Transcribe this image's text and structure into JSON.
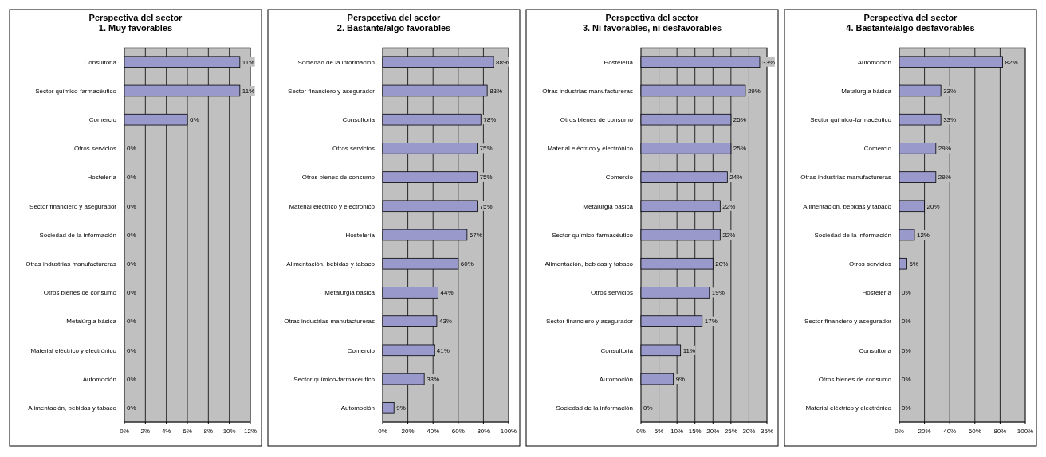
{
  "chart_data": [
    {
      "type": "bar",
      "orientation": "horizontal",
      "title": "Perspectiva del sector\n1. Muy favorables",
      "categories": [
        "Consultoria",
        "Sector químico-farmacéutico",
        "Comercio",
        "Otros servicios",
        "Hostelería",
        "Sector financiero y asegurador",
        "Sociedad de la información",
        "Otras industrias manufactureras",
        "Otros bienes de consumo",
        "Metalúrgia básica",
        "Material eléctrico y electrónico",
        "Automoción",
        "Alimentación, bebidas y tabaco"
      ],
      "series": [
        {
          "color": "#9999cc",
          "values": [
            11,
            11,
            6,
            0,
            0,
            0,
            0,
            0,
            0,
            0,
            0,
            0,
            0
          ],
          "value_labels": [
            "11%",
            "11%",
            "6%",
            "0%",
            "0%",
            "0%",
            "0%",
            "0%",
            "0%",
            "0%",
            "0%",
            "0%",
            "0%"
          ]
        }
      ],
      "xlim": [
        0,
        12
      ],
      "xticks": [
        {
          "value": 0,
          "label": "0%"
        },
        {
          "value": 2,
          "label": "2%"
        },
        {
          "value": 4,
          "label": "4%"
        },
        {
          "value": 6,
          "label": "6%"
        },
        {
          "value": 8,
          "label": "8%"
        },
        {
          "value": 10,
          "label": "10%"
        },
        {
          "value": 12,
          "label": "12%"
        }
      ],
      "grid": "x"
    },
    {
      "type": "bar",
      "orientation": "horizontal",
      "title": "Perspectiva del sector\n2. Bastante/algo favorables",
      "categories": [
        "Sociedad de la información",
        "Sector financiero y asegurador",
        "Consultoria",
        "Otros servicios",
        "Otros bienes de consumo",
        "Material eléctrico y electrónico",
        "Hostelería",
        "Alimentación, bebidas y tabaco",
        "Metalúrgia básica",
        "Otras industrias manufactureras",
        "Comercio",
        "Sector químico-farmacéutico",
        "Automoción"
      ],
      "series": [
        {
          "color": "#9999cc",
          "values": [
            88,
            83,
            78,
            75,
            75,
            75,
            67,
            60,
            44,
            43,
            41,
            33,
            9
          ],
          "value_labels": [
            "88%",
            "83%",
            "78%",
            "75%",
            "75%",
            "75%",
            "67%",
            "60%",
            "44%",
            "43%",
            "41%",
            "33%",
            "9%"
          ]
        }
      ],
      "xlim": [
        0,
        100
      ],
      "xticks": [
        {
          "value": 0,
          "label": "0%"
        },
        {
          "value": 20,
          "label": "20%"
        },
        {
          "value": 40,
          "label": "40%"
        },
        {
          "value": 60,
          "label": "60%"
        },
        {
          "value": 80,
          "label": "80%"
        },
        {
          "value": 100,
          "label": "100%"
        }
      ],
      "grid": "x"
    },
    {
      "type": "bar",
      "orientation": "horizontal",
      "title": "Perspectiva del sector\n3. Ni favorables, ni desfavorables",
      "categories": [
        "Hostelería",
        "Otras industrias manufactureras",
        "Otros bienes de consumo",
        "Material eléctrico y electrónico",
        "Comercio",
        "Metalúrgia básica",
        "Sector químico-farmacéutico",
        "Alimentación, bebidas y tabaco",
        "Otros servicios",
        "Sector financiero y asegurador",
        "Consultoria",
        "Automoción",
        "Sociedad de la información"
      ],
      "series": [
        {
          "color": "#9999cc",
          "values": [
            33,
            29,
            25,
            25,
            24,
            22,
            22,
            20,
            19,
            17,
            11,
            9,
            0
          ],
          "value_labels": [
            "33%",
            "29%",
            "25%",
            "25%",
            "24%",
            "22%",
            "22%",
            "20%",
            "19%",
            "17%",
            "11%",
            "9%",
            "0%"
          ]
        }
      ],
      "xlim": [
        0,
        35
      ],
      "xticks": [
        {
          "value": 0,
          "label": "0%"
        },
        {
          "value": 5,
          "label": "5%"
        },
        {
          "value": 10,
          "label": "10%"
        },
        {
          "value": 15,
          "label": "15%"
        },
        {
          "value": 20,
          "label": "20%"
        },
        {
          "value": 25,
          "label": "25%"
        },
        {
          "value": 30,
          "label": "30%"
        },
        {
          "value": 35,
          "label": "35%"
        }
      ],
      "grid": "x"
    },
    {
      "type": "bar",
      "orientation": "horizontal",
      "title": "Perspectiva del sector\n4. Bastante/algo desfavorables",
      "categories": [
        "Automoción",
        "Metalúrgia básica",
        "Sector químico-farmacéutico",
        "Comercio",
        "Otras industrias manufactureras",
        "Alimentación, bebidas y tabaco",
        "Sociedad de la información",
        "Otros servicios",
        "Hostelería",
        "Sector financiero y asegurador",
        "Consultoria",
        "Otros bienes de consumo",
        "Material eléctrico y electrónico"
      ],
      "series": [
        {
          "color": "#9999cc",
          "values": [
            82,
            33,
            33,
            29,
            29,
            20,
            12,
            6,
            0,
            0,
            0,
            0,
            0
          ],
          "value_labels": [
            "82%",
            "33%",
            "33%",
            "29%",
            "29%",
            "20%",
            "12%",
            "6%",
            "0%",
            "0%",
            "0%",
            "0%",
            "0%"
          ]
        }
      ],
      "xlim": [
        0,
        100
      ],
      "xticks": [
        {
          "value": 0,
          "label": "0%"
        },
        {
          "value": 20,
          "label": "20%"
        },
        {
          "value": 40,
          "label": "40%"
        },
        {
          "value": 60,
          "label": "60%"
        },
        {
          "value": 80,
          "label": "80%"
        },
        {
          "value": 100,
          "label": "100%"
        }
      ],
      "grid": "x"
    }
  ]
}
